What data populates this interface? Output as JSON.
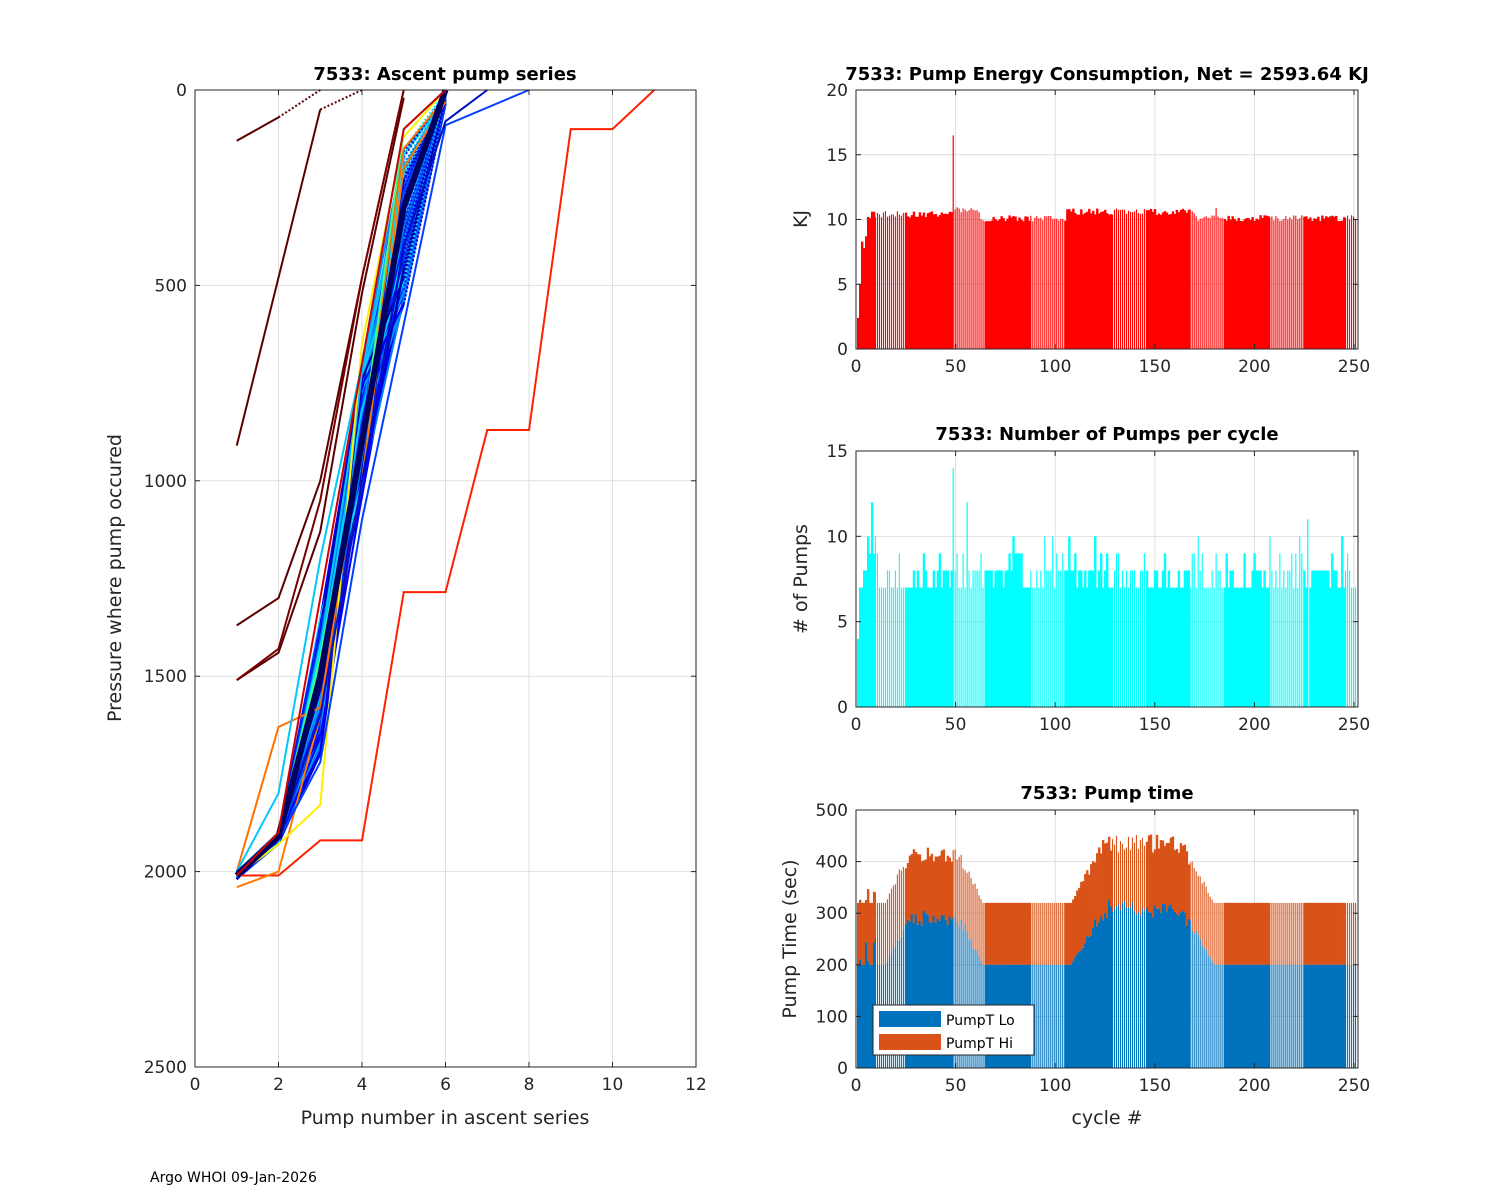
{
  "footer": "Argo WHOI 09-Jan-2026",
  "chart_data": [
    {
      "id": "ascent",
      "type": "line",
      "title": "7533: Ascent pump series",
      "xlabel": "Pump number in ascent series",
      "ylabel": "Pressure where pump occured",
      "xlim": [
        0,
        12
      ],
      "ylim": [
        0,
        2500
      ],
      "y_reversed": true,
      "grid": true,
      "xticks": [
        0,
        2,
        4,
        6,
        8,
        10,
        12
      ],
      "yticks": [
        0,
        500,
        1000,
        1500,
        2000,
        2500
      ],
      "colormap": "jet (colored by cycle)",
      "series_note": "~250 ascent profiles; representative lines listed; dotted segments connect last pump to surface",
      "series": [
        {
          "name": "profile-a",
          "color": "#5a0000",
          "x": [
            1,
            2,
            3
          ],
          "y": [
            130,
            70,
            0
          ],
          "dotted_from": 1
        },
        {
          "name": "profile-b",
          "color": "#5a0000",
          "x": [
            1,
            2,
            3,
            4
          ],
          "y": [
            910,
            480,
            50,
            0
          ],
          "dotted_from": 2
        },
        {
          "name": "profile-c",
          "color": "#5a0000",
          "x": [
            1,
            2,
            3,
            4,
            5
          ],
          "y": [
            1370,
            1300,
            1000,
            480,
            0
          ],
          "dotted_from": 3
        },
        {
          "name": "profile-d",
          "color": "#5a0000",
          "x": [
            1,
            2,
            3,
            4,
            5
          ],
          "y": [
            1510,
            1440,
            1130,
            520,
            20
          ],
          "dotted_from": 4
        },
        {
          "name": "profile-e",
          "color": "#7a0000",
          "x": [
            1,
            2,
            3,
            4,
            5
          ],
          "y": [
            1510,
            1430,
            1050,
            480,
            0
          ],
          "dotted_from": 4
        },
        {
          "name": "profile-outlier-red",
          "color": "#ff2000",
          "x": [
            1,
            2,
            3,
            4,
            5,
            6,
            7,
            8,
            9,
            10,
            11
          ],
          "y": [
            2010,
            2010,
            1920,
            1920,
            1285,
            1285,
            870,
            870,
            100,
            100,
            0
          ],
          "dotted_from": 10
        },
        {
          "name": "profile-orange-1",
          "color": "#ff7a00",
          "x": [
            1,
            2,
            3,
            4,
            5,
            6
          ],
          "y": [
            2040,
            2000,
            1600,
            1000,
            200,
            30
          ],
          "dotted_from": 5
        },
        {
          "name": "profile-orange-2",
          "color": "#ff7000",
          "x": [
            1,
            2,
            3,
            4,
            5,
            6
          ],
          "y": [
            2000,
            1630,
            1580,
            900,
            150,
            20
          ],
          "dotted_from": 5
        },
        {
          "name": "profile-yellow",
          "color": "#ffee00",
          "x": [
            1,
            2,
            3,
            4,
            5,
            6
          ],
          "y": [
            2010,
            1930,
            1830,
            650,
            120,
            0
          ],
          "dotted_from": 5
        },
        {
          "name": "profile-cyan",
          "color": "#00c8ff",
          "x": [
            1,
            2,
            3,
            4,
            5,
            6
          ],
          "y": [
            2000,
            1800,
            1200,
            700,
            100,
            0
          ],
          "dotted_from": 5
        },
        {
          "name": "profile-green",
          "color": "#40ff80",
          "x": [
            1,
            2,
            3,
            4,
            5,
            6
          ],
          "y": [
            2010,
            1900,
            1450,
            900,
            100,
            0
          ],
          "dotted_from": 5
        },
        {
          "name": "profile-blue-1",
          "color": "#0040ff",
          "x": [
            1,
            2,
            3,
            4,
            5,
            6,
            8
          ],
          "y": [
            2010,
            1920,
            1720,
            1100,
            600,
            90,
            0
          ],
          "dotted_from": 6
        },
        {
          "name": "profile-blue-2",
          "color": "#0010c0",
          "x": [
            1,
            2,
            3,
            4,
            5,
            6,
            7
          ],
          "y": [
            2000,
            1910,
            1600,
            1000,
            400,
            80,
            0
          ],
          "dotted_from": 6
        },
        {
          "name": "profile-navy-bundle",
          "color": "#000060",
          "x": [
            1,
            2,
            3,
            4,
            5,
            6
          ],
          "y": [
            2010,
            1910,
            1500,
            900,
            300,
            0
          ],
          "dotted_from": 5
        },
        {
          "name": "profile-red-bundle",
          "color": "#d00000",
          "x": [
            1,
            2,
            3,
            4,
            5,
            6
          ],
          "y": [
            2010,
            1900,
            1300,
            700,
            100,
            0
          ],
          "dotted_from": 5
        }
      ]
    },
    {
      "id": "energy",
      "type": "bar",
      "title": "7533: Pump Energy Consumption,  Net = 2593.64 KJ",
      "xlabel": "",
      "ylabel": "KJ",
      "xlim": [
        0,
        252
      ],
      "ylim": [
        0,
        20
      ],
      "grid": true,
      "xticks": [
        0,
        50,
        100,
        150,
        200,
        250
      ],
      "yticks": [
        0,
        5,
        10,
        15,
        20
      ],
      "color": "#ff0000",
      "x_range": [
        1,
        251
      ],
      "baseline": 10.2,
      "notes": "cycles 1-8 ramp up from ~2.4 to ~10; spike 16.5 at cycle 49; otherwise ~9.9-10.9",
      "start_values": [
        2.4,
        5.0,
        8.3,
        7.8,
        8.7,
        10.2,
        10.1,
        10.6,
        10.6
      ],
      "spikes": [
        {
          "x": 49,
          "y": 16.5
        },
        {
          "x": 181,
          "y": 10.9
        }
      ],
      "segments": [
        {
          "from": 10,
          "to": 48,
          "level": 10.4
        },
        {
          "from": 50,
          "to": 62,
          "level": 10.7
        },
        {
          "from": 63,
          "to": 105,
          "level": 10.1
        },
        {
          "from": 106,
          "to": 170,
          "level": 10.6
        },
        {
          "from": 171,
          "to": 251,
          "level": 10.1
        }
      ]
    },
    {
      "id": "pumps",
      "type": "bar",
      "title": "7533: Number of Pumps per cycle",
      "xlabel": "",
      "ylabel": "# of Pumps",
      "xlim": [
        0,
        252
      ],
      "ylim": [
        0,
        15
      ],
      "grid": true,
      "xticks": [
        0,
        50,
        100,
        150,
        200,
        250
      ],
      "yticks": [
        0,
        5,
        10,
        15
      ],
      "color": "#00ffff",
      "x_range": [
        1,
        251
      ],
      "start_values": [
        4,
        7,
        7,
        8,
        8,
        10,
        9,
        12,
        9,
        10
      ],
      "spikes": [
        {
          "x": 49,
          "y": 14
        },
        {
          "x": 56,
          "y": 12
        },
        {
          "x": 227,
          "y": 11
        }
      ],
      "segments": [
        {
          "from": 11,
          "to": 24,
          "level": 9
        },
        {
          "from": 25,
          "to": 48,
          "level": 8
        },
        {
          "from": 50,
          "to": 64,
          "level": 8
        },
        {
          "from": 65,
          "to": 104,
          "level": 9
        },
        {
          "from": 105,
          "to": 127,
          "level": 8
        },
        {
          "from": 128,
          "to": 168,
          "level": 7
        },
        {
          "from": 169,
          "to": 186,
          "level": 8
        },
        {
          "from": 187,
          "to": 251,
          "level": 9
        }
      ]
    },
    {
      "id": "pumptime",
      "type": "bar",
      "stacked": true,
      "title": "7533: Pump time",
      "xlabel": "cycle #",
      "ylabel": "Pump Time (sec)",
      "xlim": [
        0,
        252
      ],
      "ylim": [
        0,
        500
      ],
      "grid": true,
      "xticks": [
        0,
        50,
        100,
        150,
        200,
        250
      ],
      "yticks": [
        0,
        100,
        200,
        300,
        400,
        500
      ],
      "legend": {
        "position": "bottom-left",
        "entries": [
          {
            "label": "PumpT Lo",
            "color": "#0072bd"
          },
          {
            "label": "PumpT Hi",
            "color": "#d95319"
          }
        ]
      },
      "x_range": [
        1,
        251
      ],
      "series": [
        {
          "name": "PumpT Lo",
          "color": "#0072bd",
          "baseline": 200,
          "humps": [
            {
              "from": 15,
              "to": 64,
              "peak": 300
            },
            {
              "from": 108,
              "to": 180,
              "peak": 320
            }
          ]
        },
        {
          "name": "PumpT Hi",
          "color": "#d95319",
          "baseline_total": 320,
          "humps": [
            {
              "from": 15,
              "to": 64,
              "peak_total": 425
            },
            {
              "from": 108,
              "to": 180,
              "peak_total": 450
            }
          ]
        }
      ]
    }
  ]
}
